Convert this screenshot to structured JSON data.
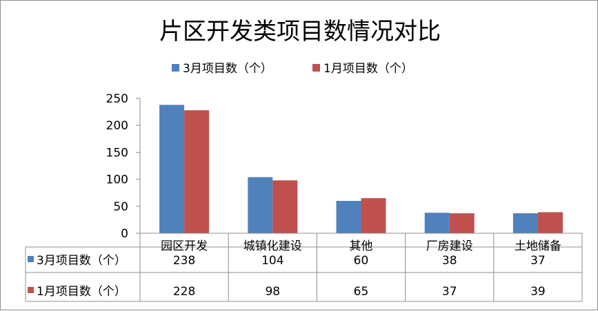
{
  "chart_data": {
    "type": "bar",
    "title": "片区开发类项目数情况对比",
    "categories": [
      "园区开发",
      "城镇化建设",
      "其他",
      "厂房建设",
      "土地储备"
    ],
    "series": [
      {
        "name": "3月项目数（个）",
        "values": [
          238,
          104,
          60,
          38,
          37
        ],
        "color": "#4f81bd"
      },
      {
        "name": "1月项目数（个）",
        "values": [
          228,
          98,
          65,
          37,
          39
        ],
        "color": "#c0504d"
      }
    ],
    "ylim": [
      0,
      250
    ],
    "yticks": [
      0,
      50,
      100,
      150,
      200,
      250
    ],
    "legend_position": "top",
    "data_table": true,
    "grid": false
  }
}
